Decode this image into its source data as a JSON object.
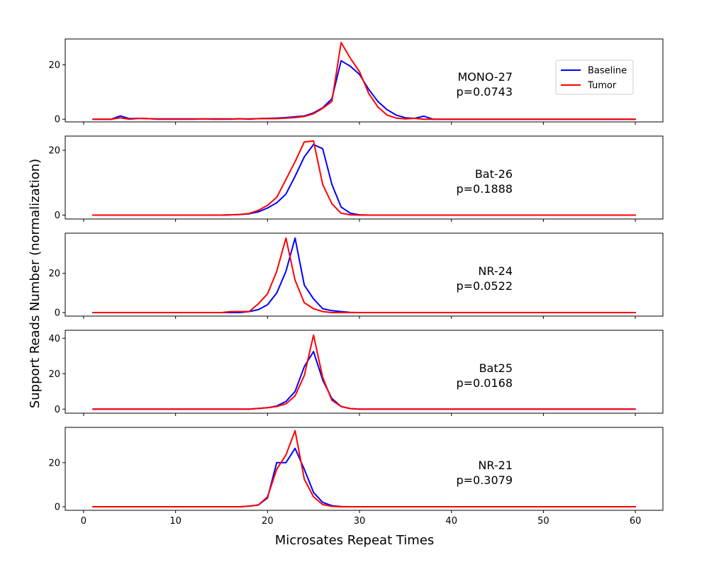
{
  "chart_data": {
    "type": "line",
    "xlabel": "Microsates Repeat Times",
    "ylabel": "Support Reads Number (normalization)",
    "xlim": [
      -2,
      63
    ],
    "xticks": [
      0,
      10,
      20,
      30,
      40,
      50,
      60
    ],
    "grid": false,
    "legend": {
      "placement": "top-right of first panel",
      "entries": [
        {
          "name": "Baseline",
          "color": "#0000ff"
        },
        {
          "name": "Tumor",
          "color": "#ff0000"
        }
      ]
    },
    "x": [
      1,
      2,
      3,
      4,
      5,
      6,
      7,
      8,
      9,
      10,
      11,
      12,
      13,
      14,
      15,
      16,
      17,
      18,
      19,
      20,
      21,
      22,
      23,
      24,
      25,
      26,
      27,
      28,
      29,
      30,
      31,
      32,
      33,
      34,
      35,
      36,
      37,
      38,
      39,
      40,
      41,
      42,
      43,
      44,
      45,
      46,
      47,
      48,
      49,
      50,
      51,
      52,
      53,
      54,
      55,
      56,
      57,
      58,
      59,
      60
    ],
    "panels": [
      {
        "name": "MONO-27",
        "p_value": "p=0.0743",
        "ylim": [
          -1,
          29.5
        ],
        "yticks": [
          0,
          20
        ],
        "series": [
          {
            "name": "Baseline",
            "color": "#0000ff",
            "values": [
              0,
              0,
              0,
              1.2,
              0.2,
              0.3,
              0.2,
              0.1,
              0.1,
              0.1,
              0.1,
              0.1,
              0.1,
              0.1,
              0.1,
              0.1,
              0.1,
              0.1,
              0.2,
              0.3,
              0.4,
              0.6,
              0.9,
              1.2,
              2.3,
              4.2,
              7.5,
              21.5,
              19.5,
              16.5,
              11,
              6.5,
              3.5,
              1.5,
              0.5,
              0.3,
              1.1,
              0,
              0,
              0,
              0,
              0,
              0,
              0,
              0,
              0,
              0,
              0,
              0,
              0,
              0,
              0,
              0,
              0,
              0,
              0,
              0,
              0,
              0,
              0
            ]
          },
          {
            "name": "Tumor",
            "color": "#ff0000",
            "values": [
              0,
              0,
              0,
              0.5,
              0,
              0.3,
              0.2,
              0,
              0,
              0,
              0,
              0,
              0.1,
              0,
              0,
              0,
              0.2,
              0,
              0.2,
              0.2,
              0.2,
              0.4,
              0.6,
              1,
              2,
              4,
              6.5,
              28.2,
              22.5,
              17.5,
              9.5,
              4.5,
              1.5,
              0.4,
              0.1,
              0.3,
              0,
              0,
              0,
              0,
              0,
              0,
              0,
              0,
              0,
              0,
              0,
              0,
              0,
              0,
              0,
              0,
              0,
              0,
              0,
              0,
              0,
              0,
              0,
              0
            ]
          }
        ]
      },
      {
        "name": "Bat-26",
        "p_value": "p=0.1888",
        "ylim": [
          -1.2,
          24.4
        ],
        "yticks": [
          0,
          20
        ],
        "series": [
          {
            "name": "Baseline",
            "color": "#0000ff",
            "values": [
              0,
              0,
              0,
              0,
              0,
              0,
              0,
              0,
              0,
              0,
              0,
              0,
              0,
              0,
              0,
              0.1,
              0.2,
              0.4,
              1,
              2.2,
              3.8,
              6.5,
              12,
              18,
              21.8,
              20.5,
              9.5,
              2.5,
              0.6,
              0.1,
              0,
              0,
              0,
              0,
              0,
              0,
              0,
              0,
              0,
              0,
              0,
              0,
              0,
              0,
              0,
              0,
              0,
              0,
              0,
              0,
              0,
              0,
              0,
              0,
              0,
              0,
              0,
              0,
              0,
              0
            ]
          },
          {
            "name": "Tumor",
            "color": "#ff0000",
            "values": [
              0,
              0,
              0,
              0,
              0,
              0,
              0,
              0,
              0,
              0,
              0,
              0,
              0,
              0,
              0,
              0.1,
              0.2,
              0.5,
              1.5,
              3,
              5.5,
              11,
              16.5,
              22.6,
              22.9,
              9.5,
              3.5,
              0.6,
              0.1,
              0,
              0,
              0,
              0,
              0,
              0,
              0,
              0,
              0,
              0,
              0,
              0,
              0,
              0,
              0,
              0,
              0,
              0,
              0,
              0,
              0,
              0,
              0,
              0,
              0,
              0,
              0,
              0,
              0,
              0,
              0
            ]
          }
        ]
      },
      {
        "name": "NR-24",
        "p_value": "p=0.0522",
        "ylim": [
          -1.8,
          40.5
        ],
        "yticks": [
          0,
          20
        ],
        "series": [
          {
            "name": "Baseline",
            "color": "#0000ff",
            "values": [
              0,
              0,
              0,
              0,
              0,
              0,
              0,
              0,
              0,
              0,
              0,
              0,
              0,
              0,
              0,
              0,
              0,
              0.5,
              1.5,
              4,
              10,
              21,
              38,
              14,
              7,
              2,
              1,
              0.5,
              0.1,
              0,
              0,
              0,
              0,
              0,
              0,
              0,
              0,
              0,
              0,
              0,
              0,
              0,
              0,
              0,
              0,
              0,
              0,
              0,
              0,
              0,
              0,
              0,
              0,
              0,
              0,
              0,
              0,
              0,
              0,
              0
            ]
          },
          {
            "name": "Tumor",
            "color": "#ff0000",
            "values": [
              0,
              0,
              0,
              0,
              0,
              0,
              0,
              0,
              0,
              0,
              0,
              0,
              0,
              0,
              0,
              0.5,
              0.5,
              0.5,
              4.5,
              9.5,
              21,
              38,
              16.5,
              5,
              2,
              0.5,
              0,
              0,
              0,
              0,
              0,
              0,
              0,
              0,
              0,
              0,
              0,
              0,
              0,
              0,
              0,
              0,
              0,
              0,
              0,
              0,
              0,
              0,
              0,
              0,
              0,
              0,
              0,
              0,
              0,
              0,
              0,
              0,
              0,
              0
            ]
          }
        ]
      },
      {
        "name": "Bat25",
        "p_value": "p=0.0168",
        "ylim": [
          -2.3,
          44.5
        ],
        "yticks": [
          0,
          20,
          40
        ],
        "series": [
          {
            "name": "Baseline",
            "color": "#0000ff",
            "values": [
              0,
              0,
              0,
              0,
              0,
              0,
              0,
              0,
              0,
              0,
              0,
              0,
              0,
              0,
              0,
              0,
              0,
              0,
              0.4,
              0.8,
              1.8,
              4.3,
              10,
              24,
              32.5,
              16.5,
              6,
              1.5,
              0.3,
              0,
              0,
              0,
              0,
              0,
              0,
              0,
              0,
              0,
              0,
              0,
              0,
              0,
              0,
              0,
              0,
              0,
              0,
              0,
              0,
              0,
              0,
              0,
              0,
              0,
              0,
              0,
              0,
              0,
              0,
              0
            ]
          },
          {
            "name": "Tumor",
            "color": "#ff0000",
            "values": [
              0,
              0,
              0,
              0,
              0,
              0,
              0,
              0,
              0,
              0,
              0,
              0,
              0,
              0,
              0,
              0,
              0,
              0,
              0.4,
              0.8,
              1.5,
              3,
              7.5,
              19,
              41.8,
              18,
              5,
              1.5,
              0.3,
              0,
              0,
              0,
              0,
              0,
              0,
              0,
              0,
              0,
              0,
              0,
              0,
              0,
              0,
              0,
              0,
              0,
              0,
              0,
              0,
              0,
              0,
              0,
              0,
              0,
              0,
              0,
              0,
              0,
              0,
              0
            ]
          }
        ]
      },
      {
        "name": "NR-21",
        "p_value": "p=0.3079",
        "ylim": [
          -1.6,
          36
        ],
        "yticks": [
          0,
          20
        ],
        "series": [
          {
            "name": "Baseline",
            "color": "#0000ff",
            "values": [
              0,
              0,
              0,
              0,
              0,
              0,
              0,
              0,
              0,
              0,
              0,
              0,
              0,
              0,
              0,
              0,
              0,
              0.3,
              0.8,
              4,
              20,
              20,
              26.5,
              17,
              6.5,
              2,
              0.5,
              0.1,
              0,
              0,
              0,
              0,
              0,
              0,
              0,
              0,
              0,
              0,
              0,
              0,
              0,
              0,
              0,
              0,
              0,
              0,
              0,
              0,
              0,
              0,
              0,
              0,
              0,
              0,
              0,
              0,
              0,
              0,
              0,
              0
            ]
          },
          {
            "name": "Tumor",
            "color": "#ff0000",
            "values": [
              0,
              0,
              0,
              0,
              0,
              0,
              0,
              0,
              0,
              0,
              0,
              0,
              0,
              0,
              0,
              0,
              0,
              0.3,
              0.8,
              4.5,
              17,
              23.5,
              34.5,
              12.5,
              4.5,
              1,
              0.2,
              0,
              0,
              0,
              0,
              0,
              0,
              0,
              0,
              0,
              0,
              0,
              0,
              0,
              0,
              0,
              0,
              0,
              0,
              0,
              0,
              0,
              0,
              0,
              0,
              0,
              0,
              0,
              0,
              0,
              0,
              0,
              0,
              0
            ]
          }
        ]
      }
    ]
  }
}
